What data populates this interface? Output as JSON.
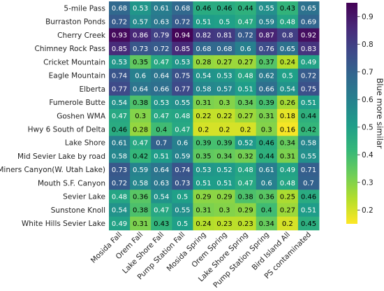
{
  "chart_data": {
    "type": "heatmap",
    "rows": [
      "5-mile Pass",
      "Burraston Ponds",
      "Cherry Creek",
      "Chimney Rock Pass",
      "Cricket Mountain",
      "Eagle Mountain",
      "Elberta",
      "Fumerole Butte",
      "Goshen WMA",
      "Hwy 6 South of Delta",
      "Lake Shore",
      "Mid Sevier Lake by road",
      "Miners Canyon(W. Utah Lake)",
      "Mouth S.F. Canyon",
      "Sevier Lake",
      "Sunstone Knoll",
      "White Hills Sevier Lake"
    ],
    "columns": [
      "Mosida Fall",
      "Orem Fall",
      "Lake Shore Fall",
      "Pump Station Fall",
      "Mosida Spring",
      "Orem Spring",
      "Lake Shore Spring",
      "Pump Station Spring",
      "Bird Island All",
      "PS contaminated"
    ],
    "values": [
      [
        0.68,
        0.53,
        0.61,
        0.68,
        0.46,
        0.46,
        0.44,
        0.55,
        0.43,
        0.65
      ],
      [
        0.72,
        0.57,
        0.63,
        0.72,
        0.51,
        0.5,
        0.47,
        0.59,
        0.48,
        0.69
      ],
      [
        0.93,
        0.86,
        0.79,
        0.94,
        0.82,
        0.81,
        0.72,
        0.87,
        0.8,
        0.92
      ],
      [
        0.85,
        0.73,
        0.72,
        0.85,
        0.68,
        0.68,
        0.6,
        0.76,
        0.65,
        0.83
      ],
      [
        0.53,
        0.35,
        0.47,
        0.53,
        0.28,
        0.27,
        0.27,
        0.37,
        0.24,
        0.49
      ],
      [
        0.74,
        0.6,
        0.64,
        0.75,
        0.54,
        0.53,
        0.48,
        0.62,
        0.5,
        0.72
      ],
      [
        0.77,
        0.64,
        0.66,
        0.77,
        0.58,
        0.57,
        0.51,
        0.66,
        0.54,
        0.75
      ],
      [
        0.54,
        0.38,
        0.53,
        0.55,
        0.31,
        0.3,
        0.34,
        0.39,
        0.26,
        0.51
      ],
      [
        0.47,
        0.3,
        0.47,
        0.48,
        0.22,
        0.22,
        0.27,
        0.31,
        0.18,
        0.44
      ],
      [
        0.46,
        0.28,
        0.4,
        0.47,
        0.2,
        0.2,
        0.2,
        0.3,
        0.16,
        0.42
      ],
      [
        0.61,
        0.47,
        0.7,
        0.6,
        0.39,
        0.39,
        0.52,
        0.46,
        0.34,
        0.58
      ],
      [
        0.58,
        0.42,
        0.51,
        0.59,
        0.35,
        0.34,
        0.32,
        0.44,
        0.31,
        0.55
      ],
      [
        0.73,
        0.59,
        0.64,
        0.74,
        0.53,
        0.52,
        0.48,
        0.61,
        0.49,
        0.71
      ],
      [
        0.72,
        0.58,
        0.63,
        0.73,
        0.51,
        0.51,
        0.47,
        0.6,
        0.48,
        0.7
      ],
      [
        0.48,
        0.36,
        0.54,
        0.5,
        0.29,
        0.29,
        0.38,
        0.36,
        0.25,
        0.46
      ],
      [
        0.54,
        0.38,
        0.47,
        0.55,
        0.31,
        0.3,
        0.29,
        0.4,
        0.27,
        0.51
      ],
      [
        0.49,
        0.31,
        0.43,
        0.5,
        0.24,
        0.23,
        0.23,
        0.34,
        0.2,
        0.45
      ]
    ],
    "colormap": "viridis_r",
    "vmin": 0.15,
    "vmax": 0.95,
    "colorbar": {
      "label": "Blue more similar",
      "ticks": [
        0.2,
        0.3,
        0.4,
        0.5,
        0.6,
        0.7,
        0.8,
        0.9
      ],
      "tick_labels": [
        "0.2",
        "0.3",
        "0.4",
        "0.5",
        "0.6",
        "0.7",
        "0.8",
        "0.9"
      ],
      "placement": "right"
    }
  }
}
